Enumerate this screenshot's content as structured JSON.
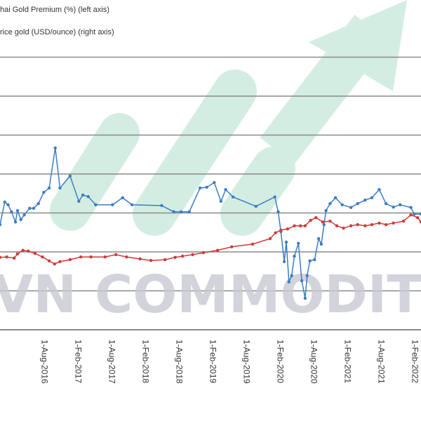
{
  "chart_data": {
    "type": "line",
    "title": "",
    "legend": [
      "Thai Gold Premium (%) (left axis)",
      "Price gold (USD/ounce) (right axis)"
    ],
    "legend_visible": [
      "hai Gold Premium (%) (left axis)",
      "rice gold (USD/ounce) (right axis)"
    ],
    "legend_placement": "top-left",
    "x_tick_labels": [
      "1-Aug-2016",
      "1-Feb-2017",
      "1-Aug-2017",
      "1-Feb-2018",
      "1-Aug-2018",
      "1-Feb-2019",
      "1-Aug-2019",
      "1-Feb-2020",
      "1-Aug-2020",
      "1-Feb-2021",
      "1-Aug-2021",
      "1-Feb-2022"
    ],
    "x_ticks_year": [
      2016.58,
      2017.08,
      2017.58,
      2018.08,
      2018.58,
      2019.08,
      2019.58,
      2020.08,
      2020.58,
      2021.08,
      2021.58,
      2022.08
    ],
    "xlim": [
      2015.92,
      2022.17
    ],
    "ylim_grid_units": [
      0,
      7
    ],
    "grid": true,
    "note": "y-axis tick values not visible; values expressed in gridline units",
    "series": [
      {
        "name": "Thai Gold Premium (%) (left axis)",
        "color": "#3b7dc4",
        "points": [
          [
            2015.92,
            2.7
          ],
          [
            2015.99,
            3.28
          ],
          [
            2016.04,
            3.21
          ],
          [
            2016.09,
            3.03
          ],
          [
            2016.15,
            2.77
          ],
          [
            2016.18,
            3.06
          ],
          [
            2016.23,
            2.83
          ],
          [
            2016.28,
            2.95
          ],
          [
            2016.36,
            3.12
          ],
          [
            2016.42,
            3.12
          ],
          [
            2016.49,
            3.24
          ],
          [
            2016.57,
            3.53
          ],
          [
            2016.65,
            3.64
          ],
          [
            2016.74,
            4.67
          ],
          [
            2016.81,
            3.64
          ],
          [
            2016.96,
            3.95
          ],
          [
            2017.09,
            3.3
          ],
          [
            2017.15,
            3.46
          ],
          [
            2017.23,
            3.42
          ],
          [
            2017.34,
            3.21
          ],
          [
            2017.59,
            3.21
          ],
          [
            2017.74,
            3.39
          ],
          [
            2017.88,
            3.21
          ],
          [
            2018.32,
            3.19
          ],
          [
            2018.5,
            3.03
          ],
          [
            2018.61,
            3.03
          ],
          [
            2018.73,
            3.03
          ],
          [
            2018.89,
            3.64
          ],
          [
            2018.99,
            3.66
          ],
          [
            2019.1,
            3.78
          ],
          [
            2019.2,
            3.3
          ],
          [
            2019.27,
            3.6
          ],
          [
            2019.38,
            3.41
          ],
          [
            2019.72,
            3.17
          ],
          [
            2020.0,
            3.41
          ],
          [
            2020.05,
            3.03
          ],
          [
            2020.09,
            2.52
          ],
          [
            2020.14,
            1.75
          ],
          [
            2020.17,
            2.25
          ],
          [
            2020.21,
            1.23
          ],
          [
            2020.25,
            1.39
          ],
          [
            2020.29,
            1.89
          ],
          [
            2020.35,
            2.22
          ],
          [
            2020.4,
            1.26
          ],
          [
            2020.45,
            0.81
          ],
          [
            2020.48,
            1.39
          ],
          [
            2020.52,
            1.77
          ],
          [
            2020.59,
            1.8
          ],
          [
            2020.65,
            2.34
          ],
          [
            2020.69,
            2.2
          ],
          [
            2020.73,
            2.7
          ],
          [
            2020.76,
            3.06
          ],
          [
            2020.82,
            3.24
          ],
          [
            2020.9,
            3.39
          ],
          [
            2021.0,
            3.21
          ],
          [
            2021.13,
            3.14
          ],
          [
            2021.23,
            3.24
          ],
          [
            2021.34,
            3.33
          ],
          [
            2021.44,
            3.39
          ],
          [
            2021.55,
            3.6
          ],
          [
            2021.65,
            3.24
          ],
          [
            2021.76,
            3.15
          ],
          [
            2021.86,
            3.21
          ],
          [
            2022.02,
            3.14
          ],
          [
            2022.07,
            2.97
          ],
          [
            2022.17,
            2.97
          ]
        ]
      },
      {
        "name": "Price gold (USD/ounce) (right axis)",
        "color": "#d03a3a",
        "points": [
          [
            2015.92,
            1.86
          ],
          [
            2016.02,
            1.87
          ],
          [
            2016.13,
            1.84
          ],
          [
            2016.18,
            1.95
          ],
          [
            2016.26,
            2.04
          ],
          [
            2016.34,
            2.02
          ],
          [
            2016.44,
            1.96
          ],
          [
            2016.55,
            1.87
          ],
          [
            2016.65,
            1.77
          ],
          [
            2016.73,
            1.69
          ],
          [
            2016.81,
            1.75
          ],
          [
            2016.96,
            1.8
          ],
          [
            2017.12,
            1.87
          ],
          [
            2017.27,
            1.87
          ],
          [
            2017.48,
            1.87
          ],
          [
            2017.64,
            1.93
          ],
          [
            2017.8,
            1.87
          ],
          [
            2018.0,
            1.82
          ],
          [
            2018.16,
            1.78
          ],
          [
            2018.37,
            1.8
          ],
          [
            2018.52,
            1.86
          ],
          [
            2018.63,
            1.89
          ],
          [
            2018.78,
            1.93
          ],
          [
            2018.94,
            1.98
          ],
          [
            2019.15,
            2.04
          ],
          [
            2019.36,
            2.13
          ],
          [
            2019.67,
            2.2
          ],
          [
            2019.93,
            2.34
          ],
          [
            2020.01,
            2.49
          ],
          [
            2020.09,
            2.56
          ],
          [
            2020.19,
            2.59
          ],
          [
            2020.29,
            2.67
          ],
          [
            2020.38,
            2.67
          ],
          [
            2020.45,
            2.67
          ],
          [
            2020.53,
            2.81
          ],
          [
            2020.61,
            2.88
          ],
          [
            2020.71,
            2.77
          ],
          [
            2020.82,
            2.79
          ],
          [
            2020.92,
            2.67
          ],
          [
            2021.02,
            2.61
          ],
          [
            2021.13,
            2.67
          ],
          [
            2021.23,
            2.7
          ],
          [
            2021.34,
            2.67
          ],
          [
            2021.44,
            2.7
          ],
          [
            2021.55,
            2.74
          ],
          [
            2021.65,
            2.7
          ],
          [
            2021.76,
            2.74
          ],
          [
            2021.91,
            2.79
          ],
          [
            2022.02,
            2.95
          ],
          [
            2022.12,
            2.88
          ],
          [
            2022.17,
            2.77
          ]
        ]
      }
    ]
  },
  "watermark": "VN COMMODITIES"
}
